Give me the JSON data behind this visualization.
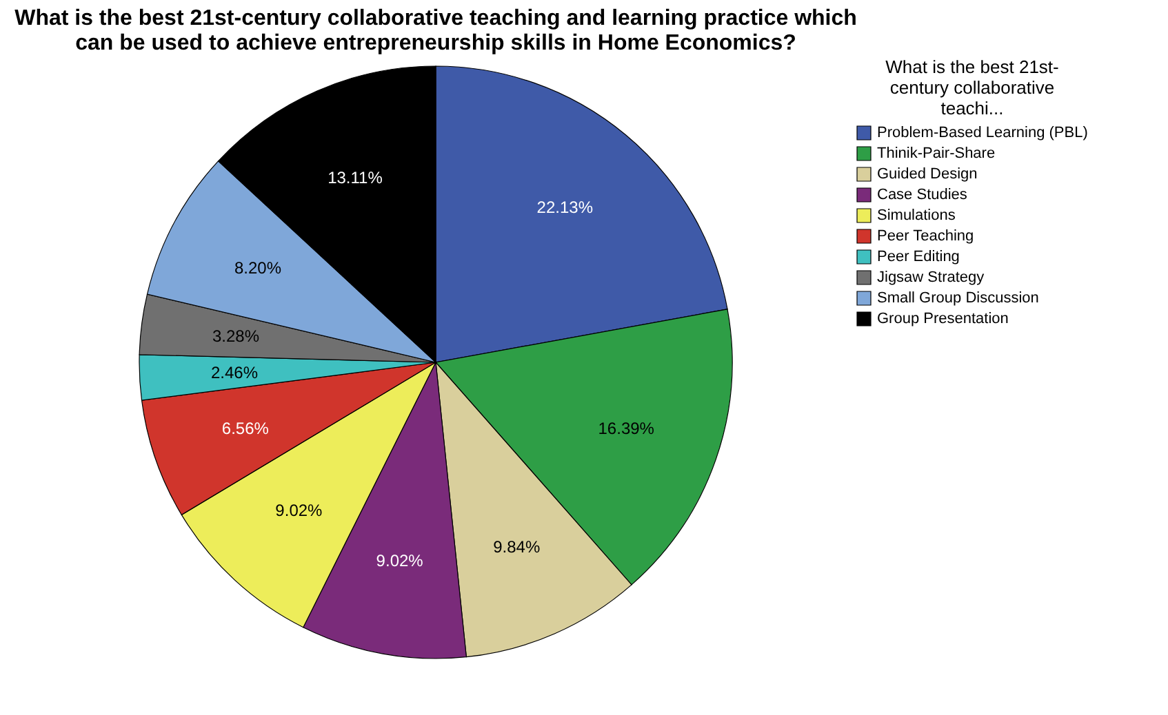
{
  "chart_data": {
    "type": "pie",
    "title": "What is the best 21st-century collaborative teaching and learning practice which can be used to achieve entrepreneurship skills in Home Economics?",
    "legend_title": "What is the best 21st-century collaborative teachi...",
    "categories": [
      "Problem-Based Learning (PBL)",
      "Thinik-Pair-Share",
      "Guided Design",
      "Case Studies",
      "Simulations",
      "Peer Teaching",
      "Peer Editing",
      "Jigsaw Strategy",
      "Small Group Discussion",
      "Group Presentation"
    ],
    "values": [
      22.13,
      16.39,
      9.84,
      9.02,
      9.02,
      6.56,
      2.46,
      3.28,
      8.2,
      13.11
    ],
    "colors": [
      "#3f5aa8",
      "#2e9e46",
      "#d9cf9c",
      "#7a2b7a",
      "#eded5a",
      "#d0352c",
      "#3fc0c0",
      "#707070",
      "#7fa7d9",
      "#000000"
    ],
    "value_labels": [
      "22.13%",
      "16.39%",
      "9.84%",
      "9.02%",
      "9.02%",
      "6.56%",
      "2.46%",
      "3.28%",
      "8.20%",
      "13.11%"
    ],
    "legend": "top right"
  }
}
